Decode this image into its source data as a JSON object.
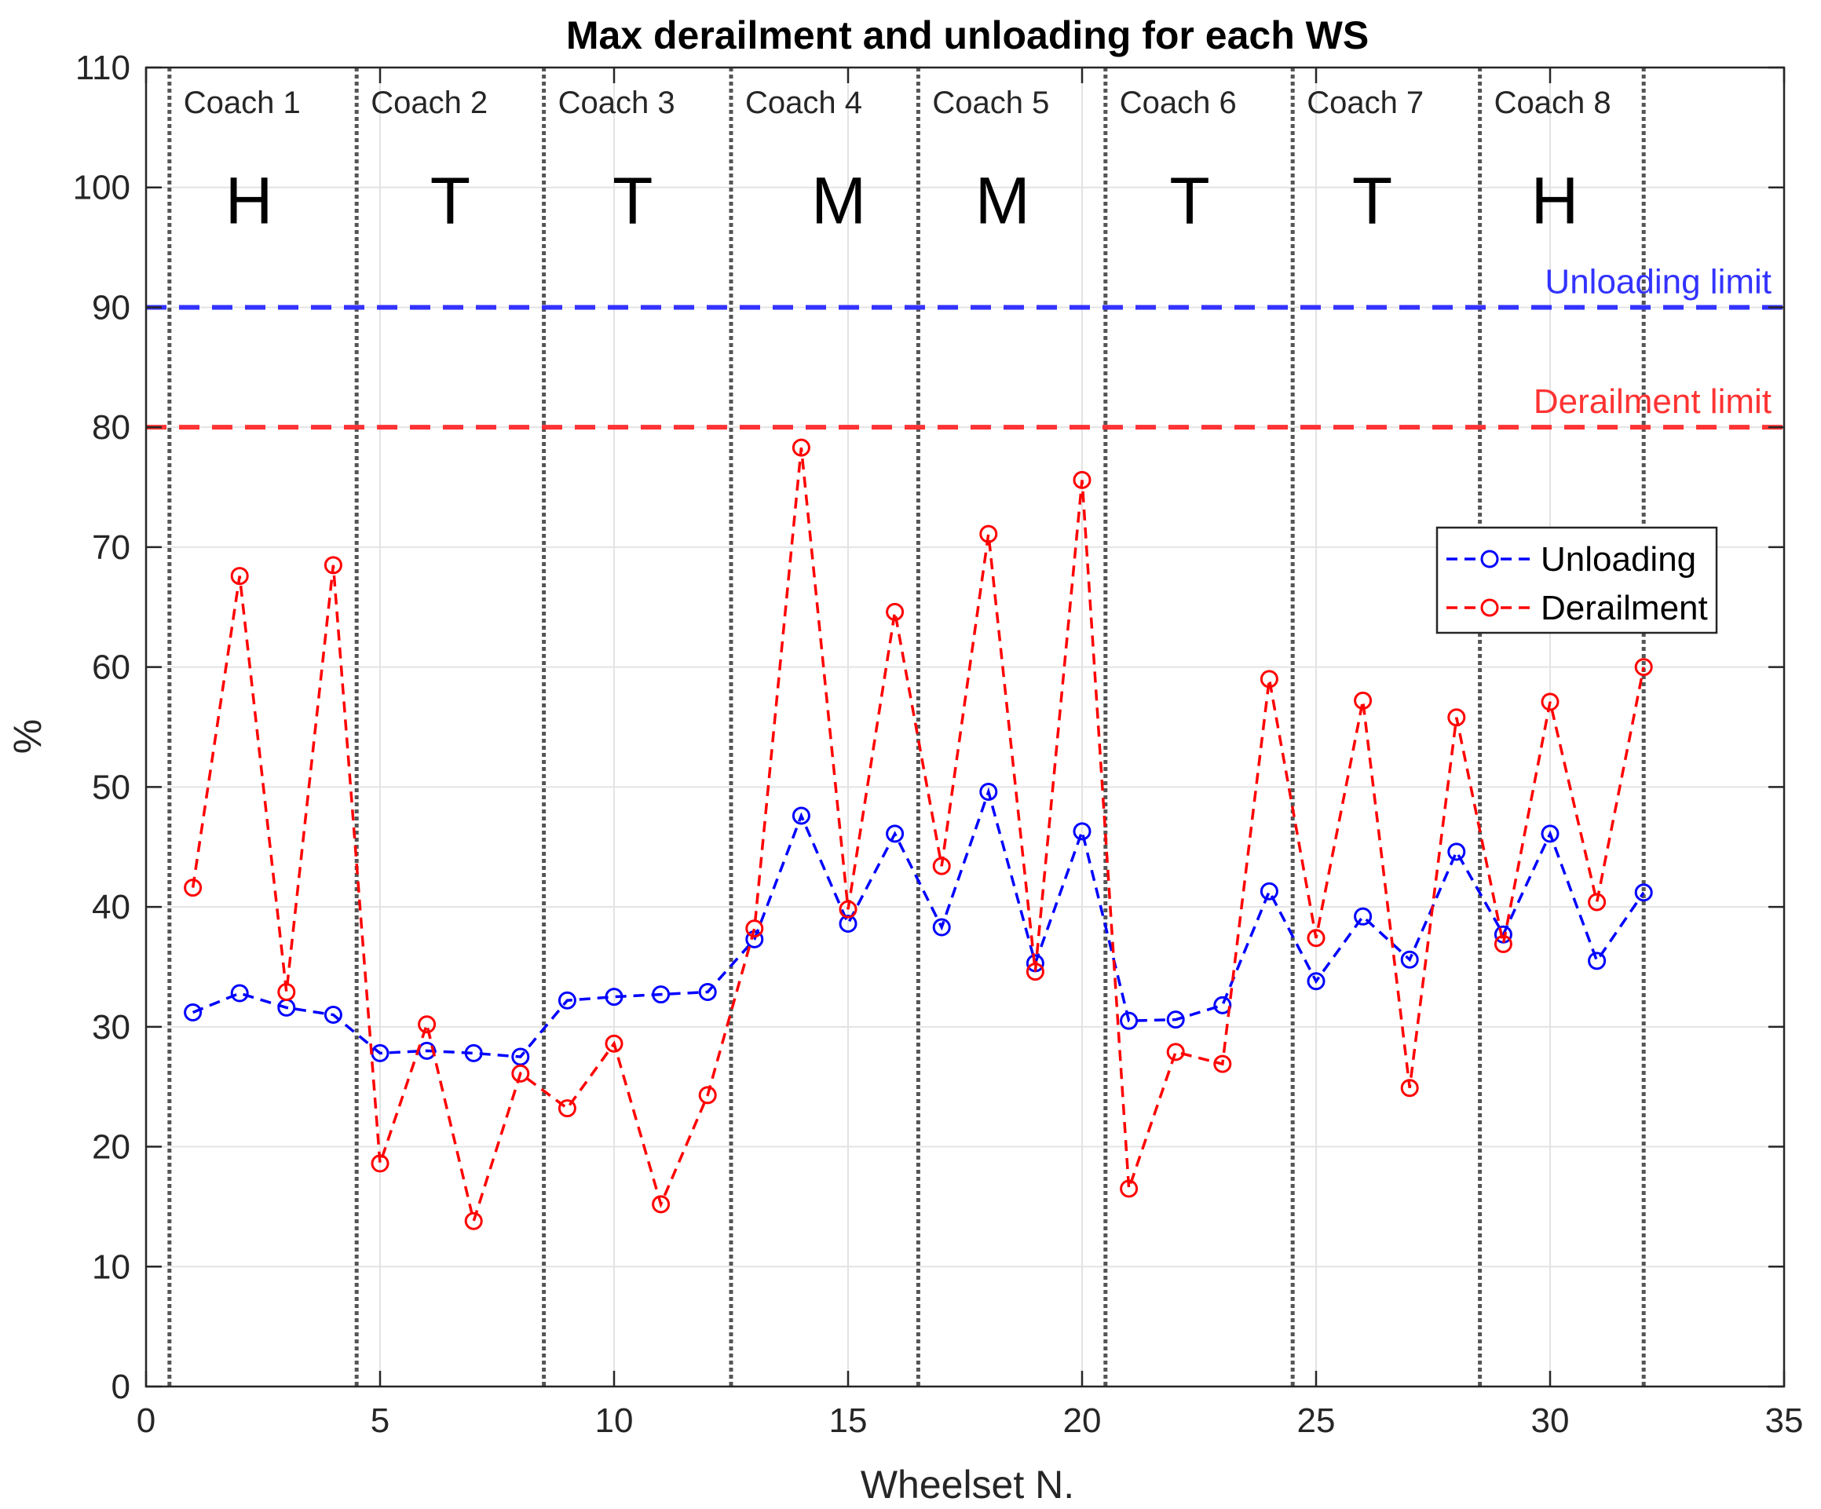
{
  "chart_data": {
    "type": "line",
    "title": "Max derailment and unloading for each WS",
    "xlabel": "Wheelset N.",
    "ylabel": "%",
    "xlim": [
      0,
      35
    ],
    "ylim": [
      0,
      110
    ],
    "xticks": [
      0,
      5,
      10,
      15,
      20,
      25,
      30,
      35
    ],
    "yticks": [
      0,
      10,
      20,
      30,
      40,
      50,
      60,
      70,
      80,
      90,
      100,
      110
    ],
    "grid": true,
    "legend_position": "right, upper-middle",
    "x": [
      1,
      2,
      3,
      4,
      5,
      6,
      7,
      8,
      9,
      10,
      11,
      12,
      13,
      14,
      15,
      16,
      17,
      18,
      19,
      20,
      21,
      22,
      23,
      24,
      25,
      26,
      27,
      28,
      29,
      30,
      31,
      32
    ],
    "series": [
      {
        "name": "Unloading",
        "color": "#0000ff",
        "style": "dashed-circle",
        "values": [
          31.2,
          32.8,
          31.6,
          31.0,
          27.8,
          28.0,
          27.8,
          27.5,
          32.2,
          32.5,
          32.7,
          32.9,
          37.3,
          47.6,
          38.6,
          46.1,
          38.3,
          49.6,
          35.3,
          46.3,
          30.5,
          30.6,
          31.8,
          41.3,
          33.8,
          39.2,
          35.6,
          44.6,
          37.7,
          46.1,
          35.5,
          41.2
        ]
      },
      {
        "name": "Derailment",
        "color": "#ff0000",
        "style": "dashed-circle",
        "values": [
          41.6,
          67.6,
          32.9,
          68.5,
          18.6,
          30.2,
          13.8,
          26.1,
          23.2,
          28.6,
          15.2,
          24.3,
          38.2,
          78.3,
          39.8,
          64.6,
          43.4,
          71.1,
          34.6,
          75.6,
          16.5,
          27.9,
          26.9,
          59.0,
          37.4,
          57.2,
          24.9,
          55.8,
          36.9,
          57.1,
          40.4,
          60.0
        ]
      }
    ],
    "reference_lines": [
      {
        "label": "Unloading limit",
        "y": 90,
        "color": "#3333ff"
      },
      {
        "label": "Derailment limit",
        "y": 80,
        "color": "#ff3333"
      }
    ],
    "dividers_x": [
      0.5,
      4.5,
      8.5,
      12.5,
      16.5,
      20.5,
      24.5,
      28.5,
      32.0
    ],
    "coaches": [
      {
        "label": "Coach 1",
        "type": "H",
        "x_start": 0.5,
        "type_x": 2.2
      },
      {
        "label": "Coach 2",
        "type": "T",
        "x_start": 4.5,
        "type_x": 6.5
      },
      {
        "label": "Coach 3",
        "type": "T",
        "x_start": 8.5,
        "type_x": 10.4
      },
      {
        "label": "Coach 4",
        "type": "M",
        "x_start": 12.5,
        "type_x": 14.8
      },
      {
        "label": "Coach 5",
        "type": "M",
        "x_start": 16.5,
        "type_x": 18.3
      },
      {
        "label": "Coach 6",
        "type": "T",
        "x_start": 20.5,
        "type_x": 22.3
      },
      {
        "label": "Coach 7",
        "type": "T",
        "x_start": 24.5,
        "type_x": 26.2
      },
      {
        "label": "Coach 8",
        "type": "H",
        "x_start": 28.5,
        "type_x": 30.1
      }
    ],
    "coach_label_y": 107,
    "coach_type_y": 97
  }
}
